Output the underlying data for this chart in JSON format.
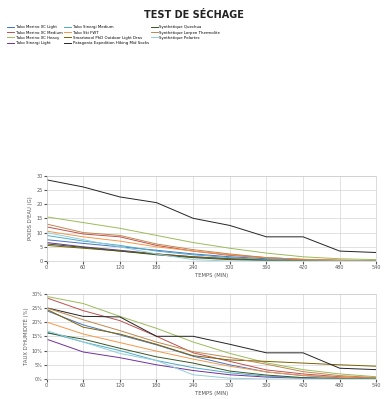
{
  "title": "TEST DE SÉCHAGE",
  "top_ylabel": "POIDS D'EAU (G)",
  "bottom_ylabel": "TAUX D'HUMIDITÉ (%)",
  "xlabel": "TEMPS (MIN)",
  "time_points": [
    0,
    60,
    120,
    180,
    240,
    300,
    360,
    420,
    480,
    540
  ],
  "series_top": {
    "Tako Merino XC Light": [
      7.5,
      6.2,
      5.0,
      3.8,
      2.5,
      1.5,
      0.8,
      0.4,
      0.2,
      0.1
    ],
    "Tako Merino XC Medium": [
      12.0,
      9.5,
      8.5,
      5.5,
      3.5,
      2.0,
      1.2,
      0.6,
      0.3,
      0.1
    ],
    "Tako Merino XC Heavy": [
      15.5,
      13.5,
      11.5,
      9.0,
      6.5,
      4.5,
      2.8,
      1.5,
      0.8,
      0.5
    ],
    "Tako Sinergi Light": [
      6.5,
      5.0,
      3.8,
      2.5,
      1.5,
      0.8,
      0.3,
      0.1,
      0.0,
      0.0
    ],
    "Tako Sinergi Medium": [
      9.0,
      7.0,
      5.5,
      3.5,
      2.2,
      1.2,
      0.5,
      0.2,
      0.0,
      0.0
    ],
    "Tako Ski FWT": [
      10.5,
      8.5,
      7.0,
      5.0,
      3.5,
      2.2,
      1.2,
      0.6,
      0.3,
      0.1
    ],
    "Smartwool PhD Outdoor Light Drav": [
      5.5,
      4.5,
      3.5,
      2.5,
      1.5,
      0.8,
      0.3,
      0.1,
      0.0,
      0.0
    ],
    "Patagonia Expedition Hiking Mid Socks": [
      28.5,
      26.0,
      22.5,
      20.5,
      15.0,
      12.5,
      8.5,
      8.5,
      3.5,
      3.0
    ],
    "Synthetique Quechua": [
      6.0,
      4.8,
      3.5,
      2.2,
      1.2,
      0.5,
      0.2,
      0.0,
      0.0,
      0.0
    ],
    "Synthetique Lorpen Thermolite": [
      13.0,
      10.0,
      9.0,
      6.0,
      4.0,
      2.5,
      1.2,
      0.5,
      0.2,
      0.1
    ],
    "Synthetique Polartec": [
      10.0,
      7.5,
      5.0,
      2.5,
      0.5,
      0.0,
      0.0,
      0.0,
      0.0,
      0.0
    ]
  },
  "series_bottom": {
    "Tako Merino XC Light": [
      0.24,
      0.19,
      0.155,
      0.12,
      0.08,
      0.05,
      0.025,
      0.012,
      0.005,
      0.002
    ],
    "Tako Merino XC Medium": [
      0.285,
      0.24,
      0.205,
      0.15,
      0.092,
      0.062,
      0.032,
      0.018,
      0.008,
      0.003
    ],
    "Tako Merino XC Heavy": [
      0.29,
      0.265,
      0.22,
      0.178,
      0.13,
      0.09,
      0.057,
      0.033,
      0.018,
      0.008
    ],
    "Tako Sinergi Light": [
      0.14,
      0.095,
      0.075,
      0.05,
      0.03,
      0.015,
      0.007,
      0.003,
      0.001,
      0.0
    ],
    "Tako Sinergi Medium": [
      0.165,
      0.13,
      0.1,
      0.065,
      0.04,
      0.022,
      0.01,
      0.004,
      0.001,
      0.0
    ],
    "Tako Ski FWT": [
      0.2,
      0.158,
      0.128,
      0.098,
      0.07,
      0.045,
      0.025,
      0.013,
      0.006,
      0.002
    ],
    "Smartwool PhD Outdoor Light Drav": [
      0.245,
      0.182,
      0.158,
      0.122,
      0.082,
      0.067,
      0.062,
      0.056,
      0.05,
      0.045
    ],
    "Patagonia Expedition Hiking Mid Socks": [
      0.25,
      0.22,
      0.218,
      0.15,
      0.15,
      0.122,
      0.092,
      0.092,
      0.038,
      0.033
    ],
    "Synthetique Quechua": [
      0.162,
      0.14,
      0.108,
      0.078,
      0.056,
      0.028,
      0.014,
      0.005,
      0.002,
      0.001
    ],
    "Synthetique Lorpen Thermolite": [
      0.25,
      0.208,
      0.17,
      0.13,
      0.096,
      0.076,
      0.052,
      0.026,
      0.012,
      0.005
    ],
    "Synthetique Polartec": [
      0.17,
      0.13,
      0.09,
      0.065,
      0.015,
      0.003,
      0.0,
      0.0,
      0.0,
      0.0
    ]
  },
  "color_map": {
    "Tako Merino XC Light": "#4472C4",
    "Tako Merino XC Medium": "#C0504D",
    "Tako Merino XC Heavy": "#9BBB59",
    "Tako Sinergi Light": "#7030A0",
    "Tako Sinergi Medium": "#4BACC6",
    "Tako Ski FWT": "#F79646",
    "Smartwool PhD Outdoor Light Drav": "#7F6000",
    "Patagonia Expedition Hiking Mid Socks": "#242424",
    "Synthetique Quechua": "#375623",
    "Synthetique Lorpen Thermolite": "#C0874F",
    "Synthetique Polartec": "#92CDDC"
  },
  "legend_labels": {
    "Tako Merino XC Light": "Tako Merino XC Light",
    "Tako Merino XC Medium": "Tako Merino XC Medium",
    "Tako Merino XC Heavy": "Tako Merino XC Heavy",
    "Tako Sinergi Light": "Tako Sinergi Light",
    "Tako Sinergi Medium": "Tako Sinergi Medium",
    "Tako Ski FWT": "Tako Ski FWT",
    "Smartwool PhD Outdoor Light Drav": "Smartwool PhD Outdoor Light Drav",
    "Patagonia Expedition Hiking Mid Socks": "Patagonia Expedition Hiking Mid Socks",
    "Synthetique Quechua": "Synthétique Quechua",
    "Synthetique Lorpen Thermolite": "Synthétique Lorpen Thermolite",
    "Synthetique Polartec": "Synthétique Polartec"
  }
}
